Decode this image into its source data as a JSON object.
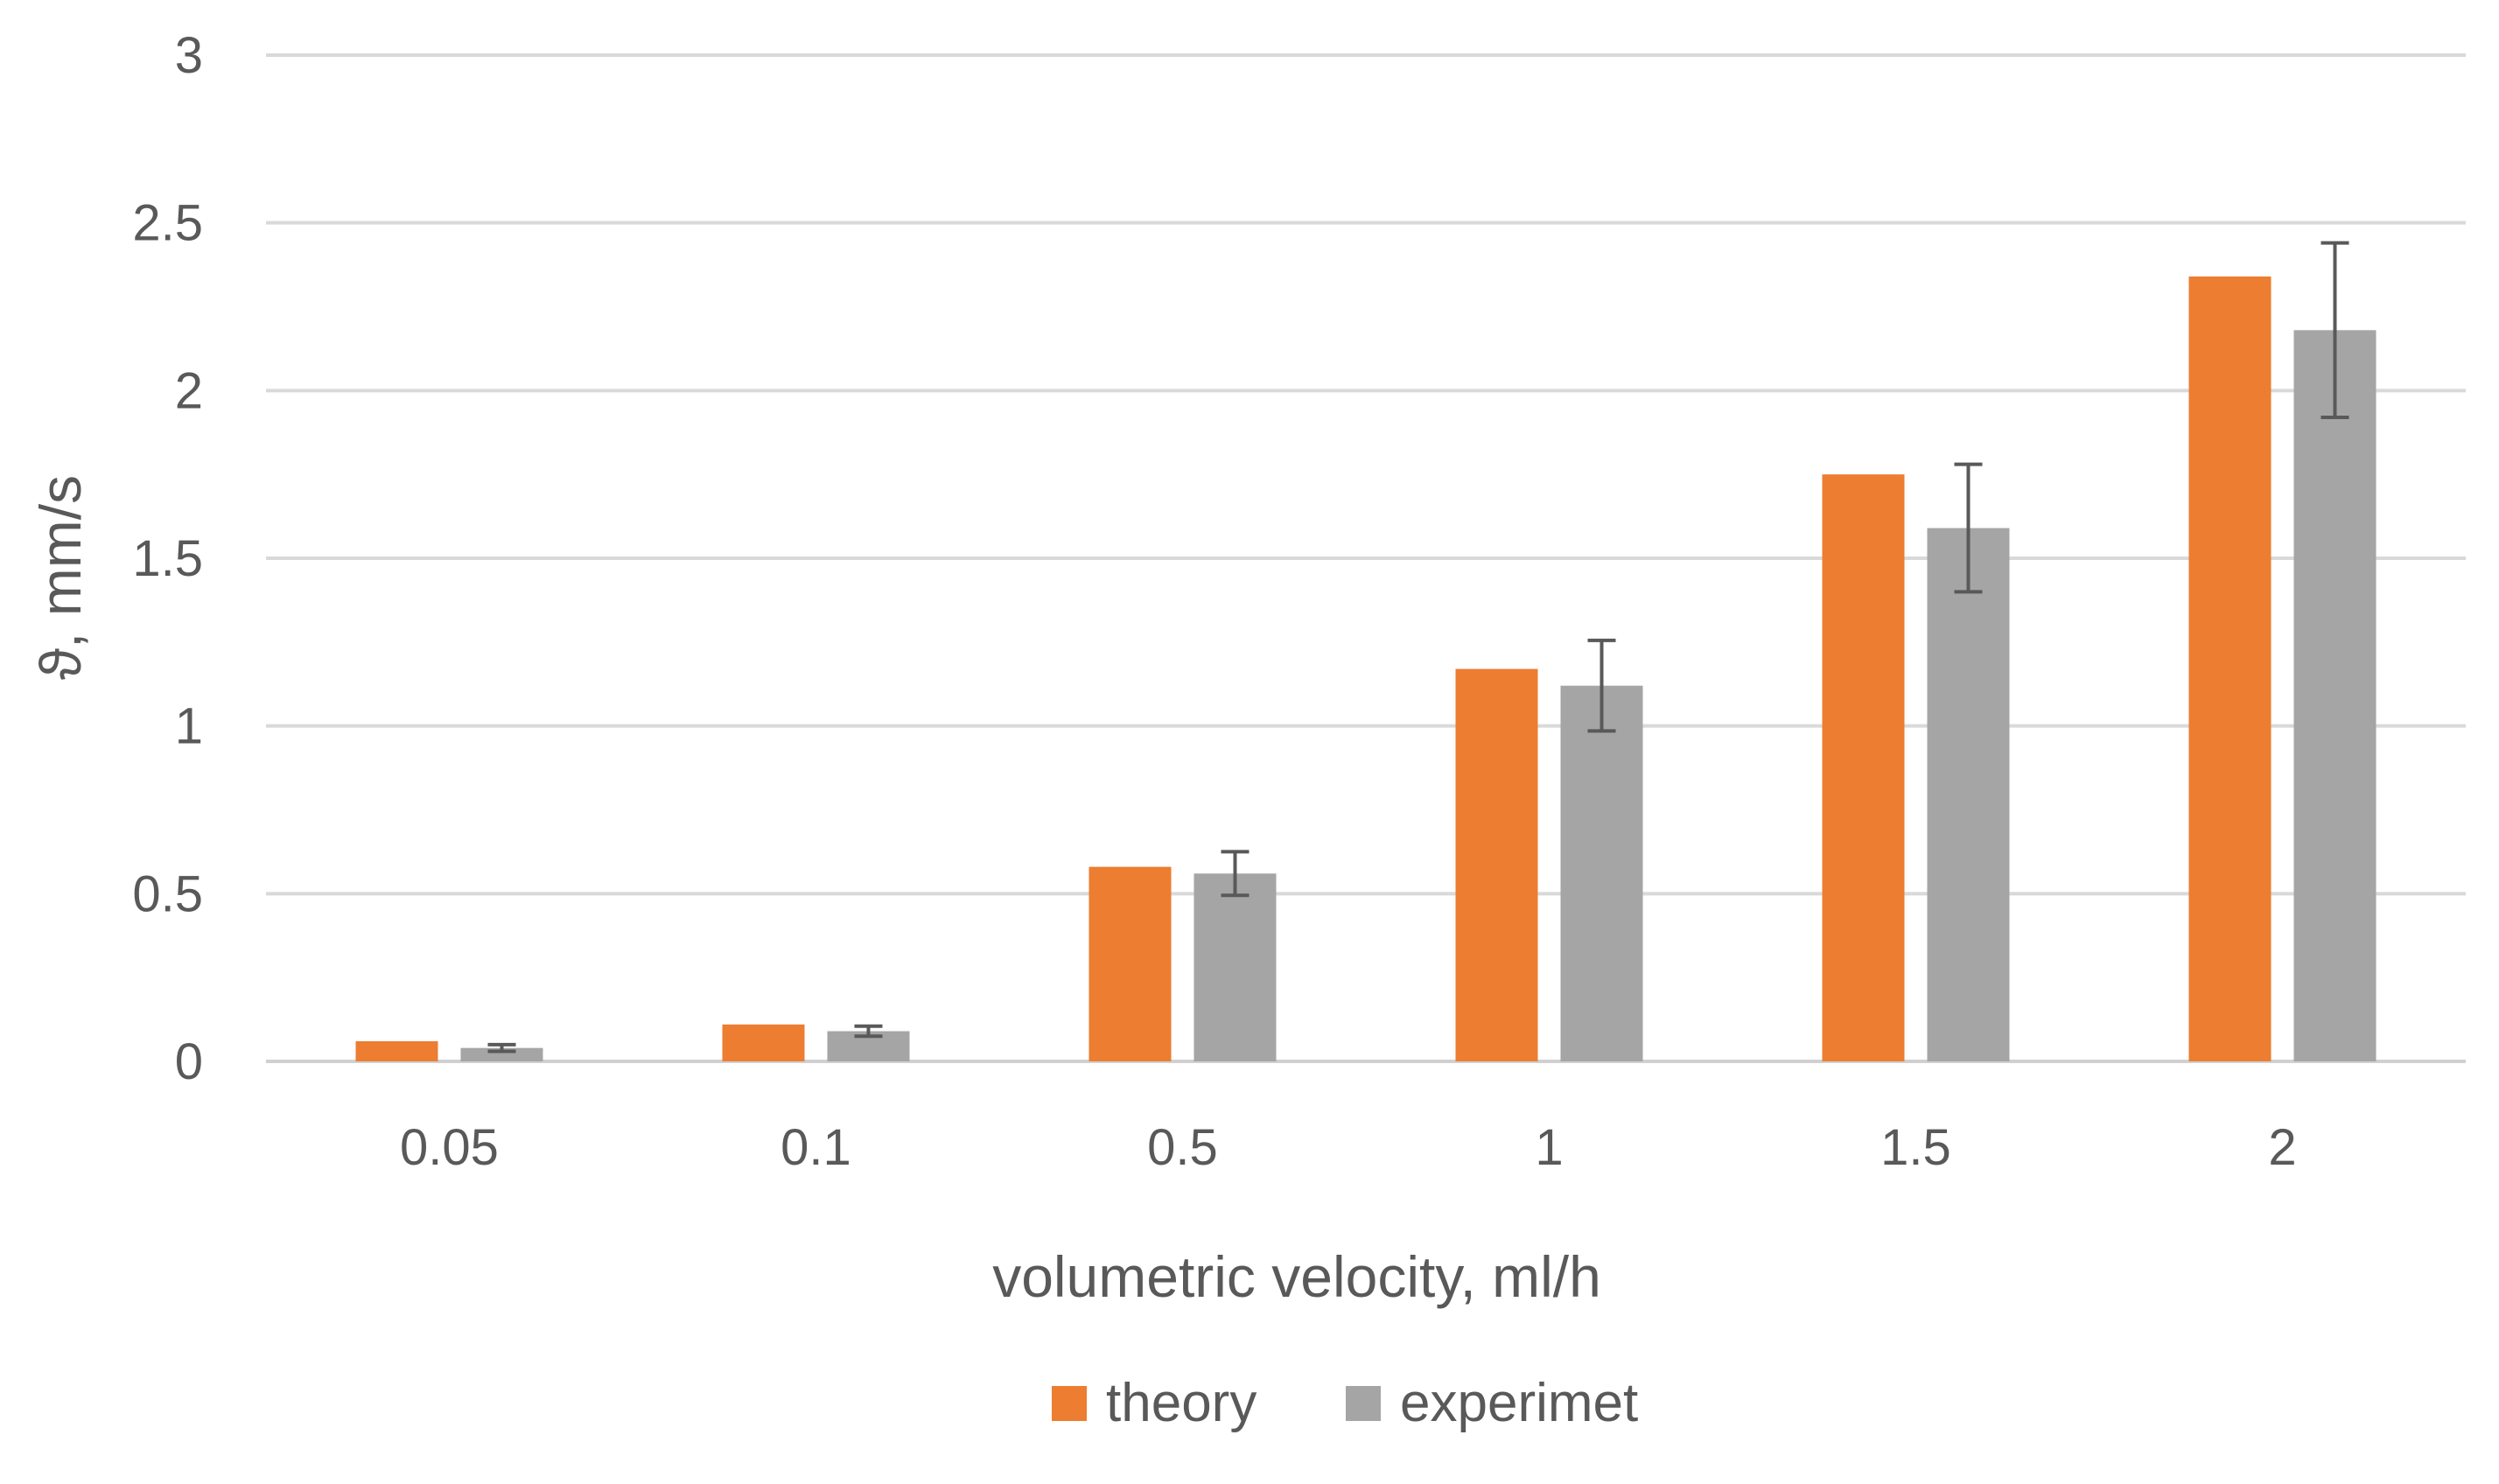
{
  "chart_data": {
    "type": "bar",
    "title": "",
    "xlabel": "volumetric velocity, ml/h",
    "ylabel": "ϑ, mm/s",
    "categories": [
      "0.05",
      "0.1",
      "0.5",
      "1",
      "1.5",
      "2"
    ],
    "ylim": [
      0,
      3
    ],
    "yticks": [
      0,
      0.5,
      1,
      1.5,
      2,
      2.5,
      3
    ],
    "ytick_labels": [
      "0",
      "0.5",
      "1",
      "1.5",
      "2",
      "2.5",
      "3"
    ],
    "grid": true,
    "legend_position": "bottom",
    "series": [
      {
        "name": "theory",
        "color": "#ED7D31",
        "values": [
          0.06,
          0.11,
          0.58,
          1.17,
          1.75,
          2.34
        ]
      },
      {
        "name": "experimet",
        "color": "#A5A5A5",
        "values": [
          0.04,
          0.09,
          0.56,
          1.12,
          1.59,
          2.18
        ],
        "error": [
          0.01,
          0.015,
          0.065,
          0.135,
          0.19,
          0.26
        ]
      }
    ]
  }
}
